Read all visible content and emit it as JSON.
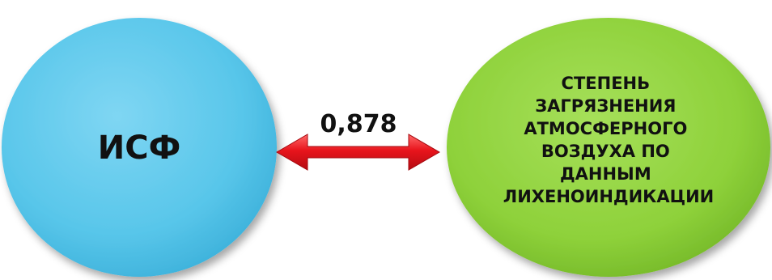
{
  "nodes": {
    "left": {
      "label": "ИСФ",
      "color": "#58c6ea"
    },
    "right": {
      "lines": [
        "СТЕПЕНЬ",
        "ЗАГРЯЗНЕНИЯ",
        "АТМОСФЕРНОГО",
        "ВОЗДУХА ПО",
        "ДАННЫМ",
        "ЛИХЕНОИНДИКАЦИИ"
      ],
      "color": "#8ed13a"
    }
  },
  "edge": {
    "label": "0,878",
    "color": "#e8141c",
    "direction": "bidirectional"
  }
}
